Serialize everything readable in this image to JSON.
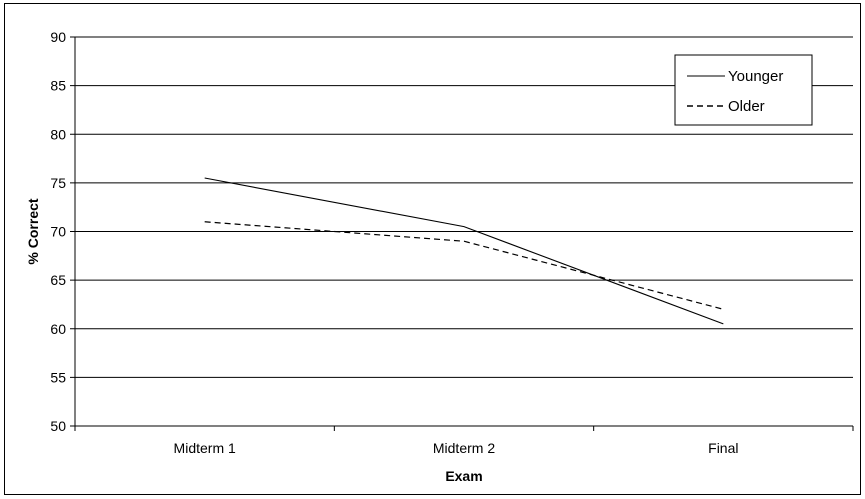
{
  "chart_data": {
    "type": "line",
    "categories": [
      "Midterm 1",
      "Midterm 2",
      "Final"
    ],
    "series": [
      {
        "name": "Younger",
        "values": [
          75.5,
          70.5,
          60.5
        ],
        "line_style": "solid"
      },
      {
        "name": "Older",
        "values": [
          71,
          69,
          62
        ],
        "line_style": "dashed"
      }
    ],
    "xlabel": "Exam",
    "ylabel": "% Correct",
    "ylim": [
      50,
      90
    ],
    "yticks": [
      50,
      55,
      60,
      65,
      70,
      75,
      80,
      85,
      90
    ],
    "grid": true,
    "legend_position": "top-right",
    "colors": {
      "line": "#000000",
      "grid": "#000000"
    }
  }
}
